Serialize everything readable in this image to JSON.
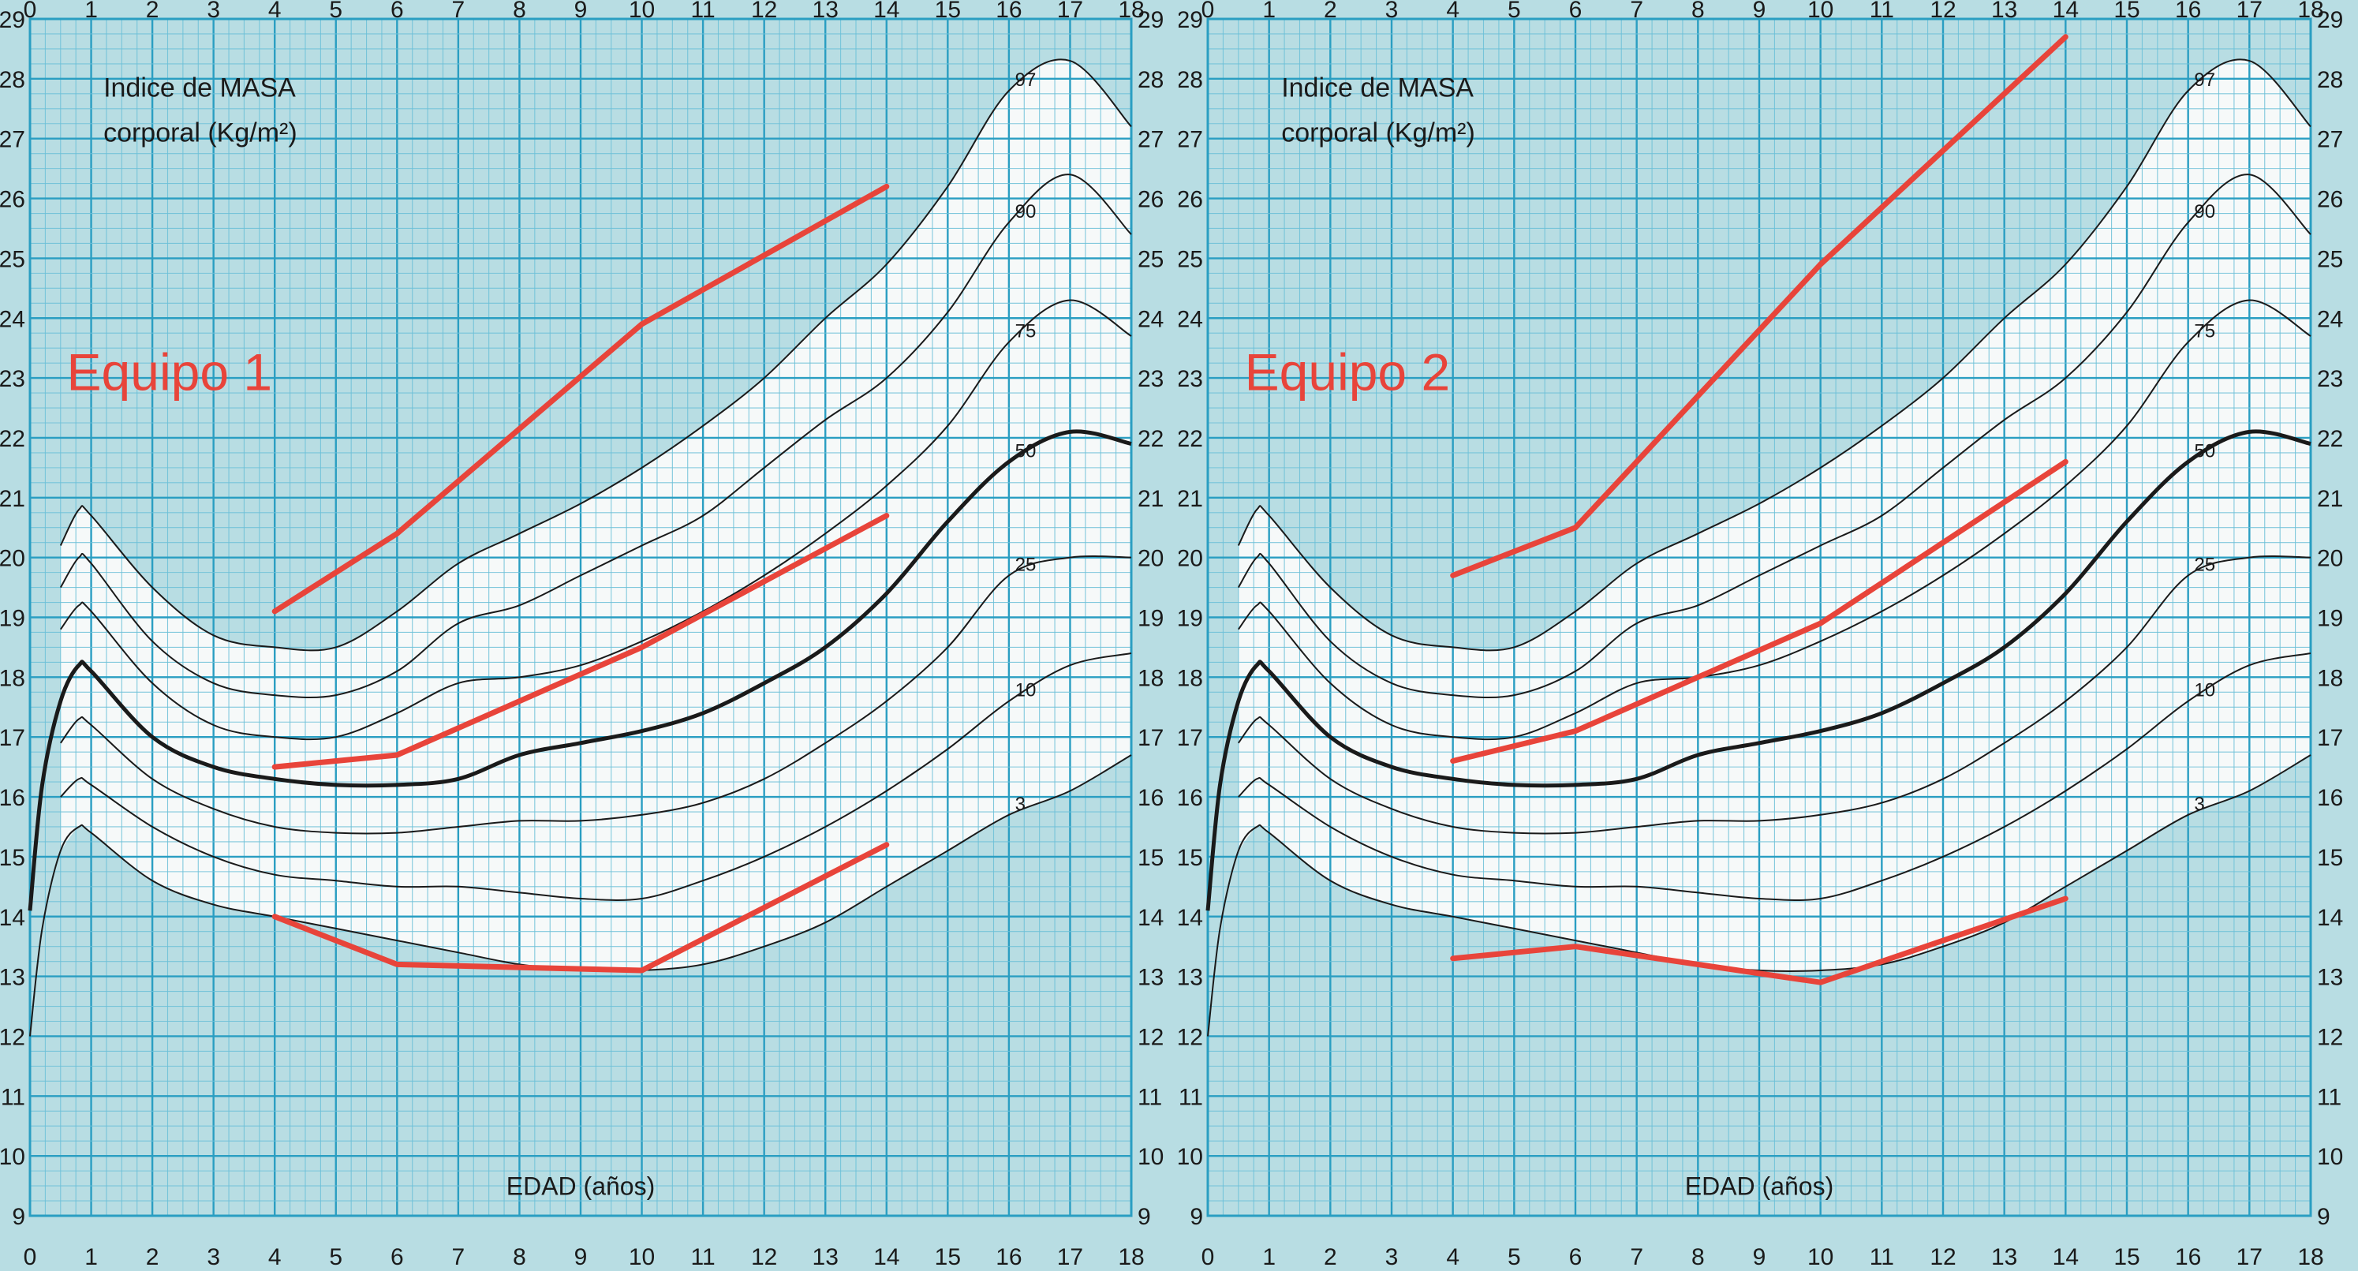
{
  "colors": {
    "paper": "#b8dde3",
    "band": "#f6f9f9",
    "grid_major": "#2a9ec2",
    "grid_minor": "#6cc0d8",
    "percentile_line": "#1a1a1a",
    "team_line": "#e8443a",
    "text": "#1a1a1a",
    "team_label": "#e8443a"
  },
  "chart_data": [
    {
      "type": "line",
      "title": "Indice de MASA",
      "subtitle": "corporal (Kg/m²)",
      "panel_label": "Equipo 1",
      "xlabel": "EDAD (años)",
      "ylabel": "",
      "xlim": [
        0,
        18
      ],
      "ylim": [
        9,
        29
      ],
      "x_ticks": [
        "0",
        "1",
        "2",
        "3",
        "4",
        "5",
        "6",
        "7",
        "8",
        "9",
        "10",
        "11",
        "12",
        "13",
        "14",
        "15",
        "16",
        "17",
        "18"
      ],
      "y_ticks": [
        "9",
        "10",
        "11",
        "12",
        "13",
        "14",
        "15",
        "16",
        "17",
        "18",
        "19",
        "20",
        "21",
        "22",
        "23",
        "24",
        "25",
        "26",
        "27",
        "28",
        "29"
      ],
      "grid": true,
      "percentile_curves": [
        {
          "name": "97",
          "x": [
            0.5,
            0.8,
            1,
            2,
            3,
            4,
            5,
            6,
            7,
            8,
            9,
            10,
            11,
            12,
            13,
            14,
            15,
            16,
            17,
            18
          ],
          "y": [
            20.2,
            20.8,
            20.7,
            19.5,
            18.7,
            18.5,
            18.5,
            19.1,
            19.9,
            20.4,
            20.9,
            21.5,
            22.2,
            23.0,
            24.0,
            24.9,
            26.2,
            27.8,
            28.3,
            27.2
          ]
        },
        {
          "name": "90",
          "x": [
            0.5,
            0.8,
            1,
            2,
            3,
            4,
            5,
            6,
            7,
            8,
            9,
            10,
            11,
            12,
            13,
            14,
            15,
            16,
            17,
            18
          ],
          "y": [
            19.5,
            20.0,
            19.9,
            18.6,
            17.9,
            17.7,
            17.7,
            18.1,
            18.9,
            19.2,
            19.7,
            20.2,
            20.7,
            21.5,
            22.3,
            23.0,
            24.1,
            25.6,
            26.4,
            25.4
          ]
        },
        {
          "name": "75",
          "x": [
            0.5,
            0.8,
            1,
            2,
            3,
            4,
            5,
            6,
            7,
            8,
            9,
            10,
            11,
            12,
            13,
            14,
            15,
            16,
            17,
            18
          ],
          "y": [
            18.8,
            19.2,
            19.1,
            17.9,
            17.2,
            17.0,
            17.0,
            17.4,
            17.9,
            18.0,
            18.2,
            18.6,
            19.1,
            19.7,
            20.4,
            21.2,
            22.2,
            23.6,
            24.3,
            23.7
          ]
        },
        {
          "name": "50",
          "x": [
            0,
            0.2,
            0.5,
            0.8,
            1,
            2,
            3,
            4,
            5,
            6,
            7,
            8,
            9,
            10,
            11,
            12,
            13,
            14,
            15,
            16,
            17,
            18
          ],
          "y": [
            14.1,
            16.2,
            17.6,
            18.2,
            18.1,
            17.0,
            16.5,
            16.3,
            16.2,
            16.2,
            16.3,
            16.7,
            16.9,
            17.1,
            17.4,
            17.9,
            18.5,
            19.4,
            20.6,
            21.6,
            22.1,
            21.9
          ],
          "bold": true
        },
        {
          "name": "25",
          "x": [
            0.5,
            0.8,
            1,
            2,
            3,
            4,
            5,
            6,
            7,
            8,
            9,
            10,
            11,
            12,
            13,
            14,
            15,
            16,
            17,
            18
          ],
          "y": [
            16.9,
            17.3,
            17.2,
            16.3,
            15.8,
            15.5,
            15.4,
            15.4,
            15.5,
            15.6,
            15.6,
            15.7,
            15.9,
            16.3,
            16.9,
            17.6,
            18.5,
            19.7,
            20.0,
            20.0
          ]
        },
        {
          "name": "10",
          "x": [
            0.5,
            0.8,
            1,
            2,
            3,
            4,
            5,
            6,
            7,
            8,
            9,
            10,
            11,
            12,
            13,
            14,
            15,
            16,
            17,
            18
          ],
          "y": [
            16.0,
            16.3,
            16.2,
            15.5,
            15.0,
            14.7,
            14.6,
            14.5,
            14.5,
            14.4,
            14.3,
            14.3,
            14.6,
            15.0,
            15.5,
            16.1,
            16.8,
            17.6,
            18.2,
            18.4
          ]
        },
        {
          "name": "3",
          "x": [
            0,
            0.2,
            0.5,
            0.8,
            1,
            2,
            3,
            4,
            5,
            6,
            7,
            8,
            9,
            10,
            11,
            12,
            13,
            14,
            15,
            16,
            17,
            18
          ],
          "y": [
            12.0,
            13.8,
            15.1,
            15.5,
            15.4,
            14.6,
            14.2,
            14.0,
            13.8,
            13.6,
            13.4,
            13.2,
            13.1,
            13.1,
            13.2,
            13.5,
            13.9,
            14.5,
            15.1,
            15.7,
            16.1,
            16.7
          ]
        }
      ],
      "series": [
        {
          "x": [
            4,
            6,
            10,
            14
          ],
          "y": [
            19.1,
            20.4,
            23.9,
            26.2
          ]
        },
        {
          "x": [
            4,
            6,
            10,
            14
          ],
          "y": [
            16.5,
            16.7,
            18.5,
            20.7
          ]
        },
        {
          "x": [
            4,
            6,
            10,
            14
          ],
          "y": [
            14.0,
            13.2,
            13.1,
            15.2
          ]
        }
      ]
    },
    {
      "type": "line",
      "title": "Indice de MASA",
      "subtitle": "corporal (Kg/m²)",
      "panel_label": "Equipo 2",
      "xlabel": "EDAD (años)",
      "ylabel": "",
      "xlim": [
        0,
        18
      ],
      "ylim": [
        9,
        29
      ],
      "x_ticks": [
        "0",
        "1",
        "2",
        "3",
        "4",
        "5",
        "6",
        "7",
        "8",
        "9",
        "10",
        "11",
        "12",
        "13",
        "14",
        "15",
        "16",
        "17",
        "18"
      ],
      "y_ticks": [
        "9",
        "10",
        "11",
        "12",
        "13",
        "14",
        "15",
        "16",
        "17",
        "18",
        "19",
        "20",
        "21",
        "22",
        "23",
        "24",
        "25",
        "26",
        "27",
        "28",
        "29"
      ],
      "grid": true,
      "percentile_curves": [
        {
          "name": "97",
          "x": [
            0.5,
            0.8,
            1,
            2,
            3,
            4,
            5,
            6,
            7,
            8,
            9,
            10,
            11,
            12,
            13,
            14,
            15,
            16,
            17,
            18
          ],
          "y": [
            20.2,
            20.8,
            20.7,
            19.5,
            18.7,
            18.5,
            18.5,
            19.1,
            19.9,
            20.4,
            20.9,
            21.5,
            22.2,
            23.0,
            24.0,
            24.9,
            26.2,
            27.8,
            28.3,
            27.2
          ]
        },
        {
          "name": "90",
          "x": [
            0.5,
            0.8,
            1,
            2,
            3,
            4,
            5,
            6,
            7,
            8,
            9,
            10,
            11,
            12,
            13,
            14,
            15,
            16,
            17,
            18
          ],
          "y": [
            19.5,
            20.0,
            19.9,
            18.6,
            17.9,
            17.7,
            17.7,
            18.1,
            18.9,
            19.2,
            19.7,
            20.2,
            20.7,
            21.5,
            22.3,
            23.0,
            24.1,
            25.6,
            26.4,
            25.4
          ]
        },
        {
          "name": "75",
          "x": [
            0.5,
            0.8,
            1,
            2,
            3,
            4,
            5,
            6,
            7,
            8,
            9,
            10,
            11,
            12,
            13,
            14,
            15,
            16,
            17,
            18
          ],
          "y": [
            18.8,
            19.2,
            19.1,
            17.9,
            17.2,
            17.0,
            17.0,
            17.4,
            17.9,
            18.0,
            18.2,
            18.6,
            19.1,
            19.7,
            20.4,
            21.2,
            22.2,
            23.6,
            24.3,
            23.7
          ]
        },
        {
          "name": "50",
          "x": [
            0,
            0.2,
            0.5,
            0.8,
            1,
            2,
            3,
            4,
            5,
            6,
            7,
            8,
            9,
            10,
            11,
            12,
            13,
            14,
            15,
            16,
            17,
            18
          ],
          "y": [
            14.1,
            16.2,
            17.6,
            18.2,
            18.1,
            17.0,
            16.5,
            16.3,
            16.2,
            16.2,
            16.3,
            16.7,
            16.9,
            17.1,
            17.4,
            17.9,
            18.5,
            19.4,
            20.6,
            21.6,
            22.1,
            21.9
          ],
          "bold": true
        },
        {
          "name": "25",
          "x": [
            0.5,
            0.8,
            1,
            2,
            3,
            4,
            5,
            6,
            7,
            8,
            9,
            10,
            11,
            12,
            13,
            14,
            15,
            16,
            17,
            18
          ],
          "y": [
            16.9,
            17.3,
            17.2,
            16.3,
            15.8,
            15.5,
            15.4,
            15.4,
            15.5,
            15.6,
            15.6,
            15.7,
            15.9,
            16.3,
            16.9,
            17.6,
            18.5,
            19.7,
            20.0,
            20.0
          ]
        },
        {
          "name": "10",
          "x": [
            0.5,
            0.8,
            1,
            2,
            3,
            4,
            5,
            6,
            7,
            8,
            9,
            10,
            11,
            12,
            13,
            14,
            15,
            16,
            17,
            18
          ],
          "y": [
            16.0,
            16.3,
            16.2,
            15.5,
            15.0,
            14.7,
            14.6,
            14.5,
            14.5,
            14.4,
            14.3,
            14.3,
            14.6,
            15.0,
            15.5,
            16.1,
            16.8,
            17.6,
            18.2,
            18.4
          ]
        },
        {
          "name": "3",
          "x": [
            0,
            0.2,
            0.5,
            0.8,
            1,
            2,
            3,
            4,
            5,
            6,
            7,
            8,
            9,
            10,
            11,
            12,
            13,
            14,
            15,
            16,
            17,
            18
          ],
          "y": [
            12.0,
            13.8,
            15.1,
            15.5,
            15.4,
            14.6,
            14.2,
            14.0,
            13.8,
            13.6,
            13.4,
            13.2,
            13.1,
            13.1,
            13.2,
            13.5,
            13.9,
            14.5,
            15.1,
            15.7,
            16.1,
            16.7
          ]
        }
      ],
      "series": [
        {
          "x": [
            4,
            6,
            10,
            14
          ],
          "y": [
            19.7,
            20.5,
            24.9,
            28.7
          ]
        },
        {
          "x": [
            4,
            6,
            10,
            14
          ],
          "y": [
            16.6,
            17.1,
            18.9,
            21.6
          ]
        },
        {
          "x": [
            4,
            6,
            10,
            14
          ],
          "y": [
            13.3,
            13.5,
            12.9,
            14.3
          ]
        }
      ]
    }
  ]
}
